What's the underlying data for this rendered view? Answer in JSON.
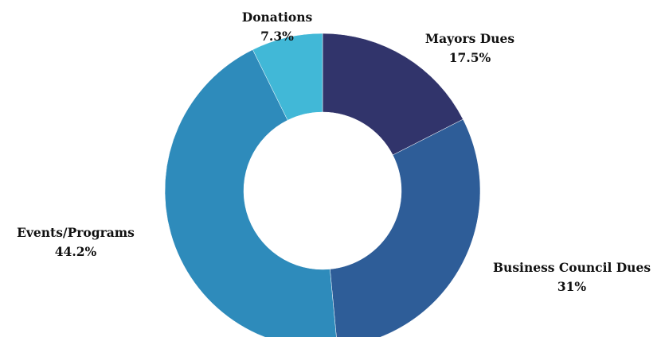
{
  "chart_data": {
    "type": "pie",
    "donut": true,
    "start_angle_deg": 0,
    "direction": "clockwise",
    "title": "",
    "slices": [
      {
        "label": "Mayors Dues",
        "value": 17.5,
        "display": "17.5%",
        "color": "#31346b"
      },
      {
        "label": "Business Council Dues",
        "value": 31,
        "display": "31%",
        "color": "#2e5d98"
      },
      {
        "label": "Events/Programs",
        "value": 44.2,
        "display": "44.2%",
        "color": "#2e8bbb"
      },
      {
        "label": "Donations",
        "value": 7.3,
        "display": "7.3%",
        "color": "#41b8d7"
      }
    ]
  }
}
